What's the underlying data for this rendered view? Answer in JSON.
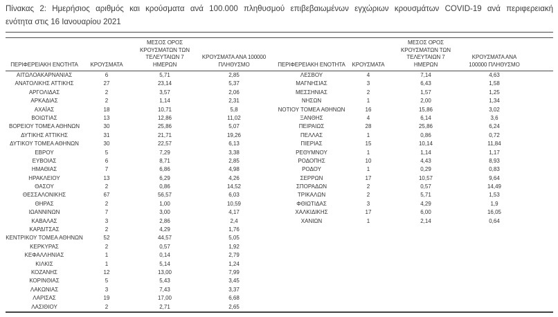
{
  "title": {
    "line1": "Πίνακας 2: Ημερήσιος αριθμός και κρούσματα ανά 100.000 πληθυσμού επιβεβαιωμένων εγχώριων κρουσμάτων COVID-19 ανά περιφερειακή",
    "line2": "ενότητα στις 16 Ιανουαρίου 2021"
  },
  "table": {
    "left": {
      "headers": {
        "region": "ΠΕΡΙΦΕΡΕΙΑΚΗ ΕΝΟΤΗΤΑ",
        "cases": "ΚΡΟΥΣΜΑΤΑ",
        "avg7": "ΜΕΣΟΣ ΟΡΟΣ\nΚΡΟΥΣΜΑΤΩΝ ΤΩΝ\nΤΕΛΕΥΤΑΙΩΝ 7\nΗΜΕΡΩΝ",
        "per100k": "ΚΡΟΥΣΜΑΤΑ ΑΝΑ 100000\nΠΛΗΘΥΣΜΟ"
      },
      "rows": [
        [
          "ΑΙΤΩΛΟΑΚΑΡΝΑΝΙΑΣ",
          "6",
          "5,71",
          "2,85"
        ],
        [
          "ΑΝΑΤΟΛΙΚΗΣ ΑΤΤΙΚΗΣ",
          "27",
          "23,14",
          "5,37"
        ],
        [
          "ΑΡΓΟΛΙΔΑΣ",
          "2",
          "3,57",
          "2,06"
        ],
        [
          "ΑΡΚΑΔΙΑΣ",
          "2",
          "1,14",
          "2,31"
        ],
        [
          "ΑΧΑΪΑΣ",
          "18",
          "10,71",
          "5,8"
        ],
        [
          "ΒΟΙΩΤΙΑΣ",
          "13",
          "12,86",
          "11,02"
        ],
        [
          "ΒΟΡΕΙΟΥ ΤΟΜΕΑ ΑΘΗΝΩΝ",
          "30",
          "25,86",
          "5,07"
        ],
        [
          "ΔΥΤΙΚΗΣ ΑΤΤΙΚΗΣ",
          "31",
          "21,71",
          "19,26"
        ],
        [
          "ΔΥΤΙΚΟΥ ΤΟΜΕΑ ΑΘΗΝΩΝ",
          "30",
          "22,57",
          "6,13"
        ],
        [
          "ΕΒΡΟΥ",
          "5",
          "7,29",
          "3,38"
        ],
        [
          "ΕΥΒΟΙΑΣ",
          "6",
          "8,71",
          "2,85"
        ],
        [
          "ΗΜΑΘΙΑΣ",
          "7",
          "6,86",
          "4,98"
        ],
        [
          "ΗΡΑΚΛΕΙΟΥ",
          "13",
          "6,29",
          "4,26"
        ],
        [
          "ΘΑΣΟΥ",
          "2",
          "0,86",
          "14,52"
        ],
        [
          "ΘΕΣΣΑΛΟΝΙΚΗΣ",
          "67",
          "56,57",
          "6,03"
        ],
        [
          "ΘΗΡΑΣ",
          "2",
          "1,00",
          "10,59"
        ],
        [
          "ΙΩΑΝΝΙΝΩΝ",
          "7",
          "3,00",
          "4,17"
        ],
        [
          "ΚΑΒΑΛΑΣ",
          "3",
          "2,86",
          "2,4"
        ],
        [
          "ΚΑΡΔΙΤΣΑΣ",
          "2",
          "4,29",
          "1,76"
        ],
        [
          "ΚΕΝΤΡΙΚΟΥ ΤΟΜΕΑ ΑΘΗΝΩΝ",
          "52",
          "44,57",
          "5,05"
        ],
        [
          "ΚΕΡΚΥΡΑΣ",
          "2",
          "0,57",
          "1,92"
        ],
        [
          "ΚΕΦΑΛΛΗΝΙΑΣ",
          "1",
          "0,14",
          "2,79"
        ],
        [
          "ΚΙΛΚΙΣ",
          "1",
          "5,14",
          "1,24"
        ],
        [
          "ΚΟΖΑΝΗΣ",
          "12",
          "13,00",
          "7,99"
        ],
        [
          "ΚΟΡΙΝΘΙΑΣ",
          "5",
          "5,43",
          "3,45"
        ],
        [
          "ΛΑΚΩΝΙΑΣ",
          "3",
          "7,43",
          "3,37"
        ],
        [
          "ΛΑΡΙΣΑΣ",
          "19",
          "17,00",
          "6,68"
        ],
        [
          "ΛΑΣΙΘΙΟΥ",
          "2",
          "2,71",
          "2,65"
        ]
      ]
    },
    "right": {
      "headers": {
        "region": "ΠΕΡΙΦΕΡΕΙΑΚΗ ΕΝΟΤΗΤΑ",
        "cases": "ΚΡΟΥΣΜΑΤΑ",
        "avg7": "ΜΕΣΟΣ ΟΡΟΣ\nΚΡΟΥΣΜΑΤΩΝ ΤΩΝ\nΤΕΛΕΥΤΑΙΩΝ 7\nΗΜΕΡΩΝ",
        "per100k": "ΚΡΟΥΣΜΑΤΑ ΑΝΑ\n100000 ΠΛΗΘΥΣΜΟ"
      },
      "rows": [
        [
          "ΛΕΣΒΟΥ",
          "4",
          "7,14",
          "4,63"
        ],
        [
          "ΜΑΓΝΗΣΙΑΣ",
          "3",
          "6,43",
          "1,58"
        ],
        [
          "ΜΕΣΣΗΝΙΑΣ",
          "2",
          "1,57",
          "1,25"
        ],
        [
          "ΝΗΣΩΝ",
          "1",
          "2,00",
          "1,34"
        ],
        [
          "ΝΟΤΙΟΥ ΤΟΜΕΑ ΑΘΗΝΩΝ",
          "16",
          "15,86",
          "3,02"
        ],
        [
          "ΞΑΝΘΗΣ",
          "4",
          "6,14",
          "3,6"
        ],
        [
          "ΠΕΙΡΑΙΩΣ",
          "28",
          "25,86",
          "6,24"
        ],
        [
          "ΠΕΛΛΑΣ",
          "1",
          "0,86",
          "0,72"
        ],
        [
          "ΠΙΕΡΙΑΣ",
          "15",
          "10,14",
          "11,84"
        ],
        [
          "ΡΕΘΥΜΝΟΥ",
          "1",
          "1,14",
          "1,17"
        ],
        [
          "ΡΟΔΟΠΗΣ",
          "10",
          "4,43",
          "8,93"
        ],
        [
          "ΡΟΔΟΥ",
          "1",
          "0,29",
          "0,83"
        ],
        [
          "ΣΕΡΡΩΝ",
          "17",
          "10,57",
          "9,64"
        ],
        [
          "ΣΠΟΡΑΔΩΝ",
          "2",
          "0,57",
          "14,49"
        ],
        [
          "ΤΡΙΚΑΛΩΝ",
          "2",
          "5,71",
          "1,53"
        ],
        [
          "ΦΘΙΩΤΙΔΑΣ",
          "3",
          "4,29",
          "1,9"
        ],
        [
          "ΧΑΛΚΙΔΙΚΗΣ",
          "17",
          "6,00",
          "16,05"
        ],
        [
          "ΧΑΝΙΩΝ",
          "1",
          "2,14",
          "0,64"
        ]
      ]
    }
  }
}
